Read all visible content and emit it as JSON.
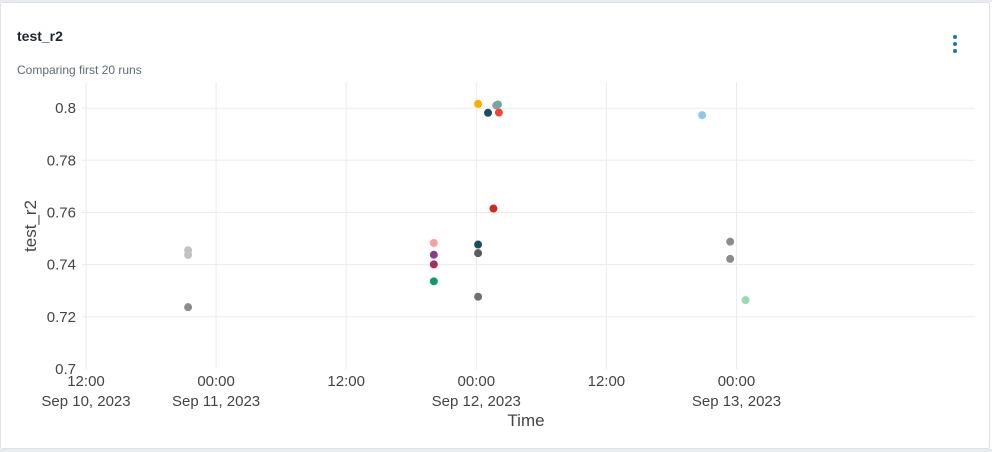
{
  "panel": {
    "title": "test_r2",
    "subtitle": "Comparing first 20 runs",
    "menu_icon": "kebab-menu-icon",
    "accent_color": "#2272b4"
  },
  "chart_data": {
    "type": "scatter",
    "title": "",
    "xlabel": "Time",
    "ylabel": "test_r2",
    "x_is_datetime": true,
    "xlim": [
      "2023-09-10T12:00",
      "2023-09-13T22:00"
    ],
    "ylim": [
      0.7,
      0.81
    ],
    "grid": true,
    "legend": "none",
    "x_ticks": [
      {
        "value": "2023-09-10T12:00",
        "label_time": "12:00",
        "label_date": "Sep 10, 2023"
      },
      {
        "value": "2023-09-11T00:00",
        "label_time": "00:00",
        "label_date": "Sep 11, 2023"
      },
      {
        "value": "2023-09-11T12:00",
        "label_time": "12:00",
        "label_date": ""
      },
      {
        "value": "2023-09-12T00:00",
        "label_time": "00:00",
        "label_date": "Sep 12, 2023"
      },
      {
        "value": "2023-09-12T12:00",
        "label_time": "12:00",
        "label_date": ""
      },
      {
        "value": "2023-09-13T00:00",
        "label_time": "00:00",
        "label_date": "Sep 13, 2023"
      }
    ],
    "y_ticks": [
      {
        "value": 0.7,
        "label": "0.7"
      },
      {
        "value": 0.72,
        "label": "0.72"
      },
      {
        "value": 0.74,
        "label": "0.74"
      },
      {
        "value": 0.76,
        "label": "0.76"
      },
      {
        "value": 0.78,
        "label": "0.78"
      },
      {
        "value": 0.8,
        "label": "0.8"
      }
    ],
    "points": [
      {
        "x": "2023-09-10T21:25",
        "y": 0.7455,
        "color": "#c2c2c2"
      },
      {
        "x": "2023-09-10T21:25",
        "y": 0.7437,
        "color": "#c2c2c2"
      },
      {
        "x": "2023-09-10T21:25",
        "y": 0.7237,
        "color": "#8c8c8c"
      },
      {
        "x": "2023-09-11T20:05",
        "y": 0.7483,
        "color": "#f4a2a2"
      },
      {
        "x": "2023-09-11T20:05",
        "y": 0.7438,
        "color": "#8c3b8c"
      },
      {
        "x": "2023-09-11T20:05",
        "y": 0.7401,
        "color": "#a3305f"
      },
      {
        "x": "2023-09-11T20:05",
        "y": 0.7336,
        "color": "#0e9a6b"
      },
      {
        "x": "2023-09-12T00:10",
        "y": 0.8016,
        "color": "#ffab00"
      },
      {
        "x": "2023-09-12T00:10",
        "y": 0.7477,
        "color": "#1b4d63"
      },
      {
        "x": "2023-09-12T00:10",
        "y": 0.7444,
        "color": "#5c5c5c"
      },
      {
        "x": "2023-09-12T00:10",
        "y": 0.7277,
        "color": "#707070"
      },
      {
        "x": "2023-09-12T01:05",
        "y": 0.7982,
        "color": "#1b4d63"
      },
      {
        "x": "2023-09-12T01:50",
        "y": 0.801,
        "color": "#9c9c9c"
      },
      {
        "x": "2023-09-12T02:00",
        "y": 0.8014,
        "color": "#6fa8a0"
      },
      {
        "x": "2023-09-12T02:05",
        "y": 0.7983,
        "color": "#f44336"
      },
      {
        "x": "2023-09-12T01:35",
        "y": 0.7615,
        "color": "#d0281b"
      },
      {
        "x": "2023-09-12T20:50",
        "y": 0.7973,
        "color": "#8dc8e8"
      },
      {
        "x": "2023-09-12T23:25",
        "y": 0.7488,
        "color": "#8c8c8c"
      },
      {
        "x": "2023-09-12T23:25",
        "y": 0.7422,
        "color": "#8c8c8c"
      },
      {
        "x": "2023-09-13T00:50",
        "y": 0.7264,
        "color": "#99dbad"
      }
    ]
  }
}
